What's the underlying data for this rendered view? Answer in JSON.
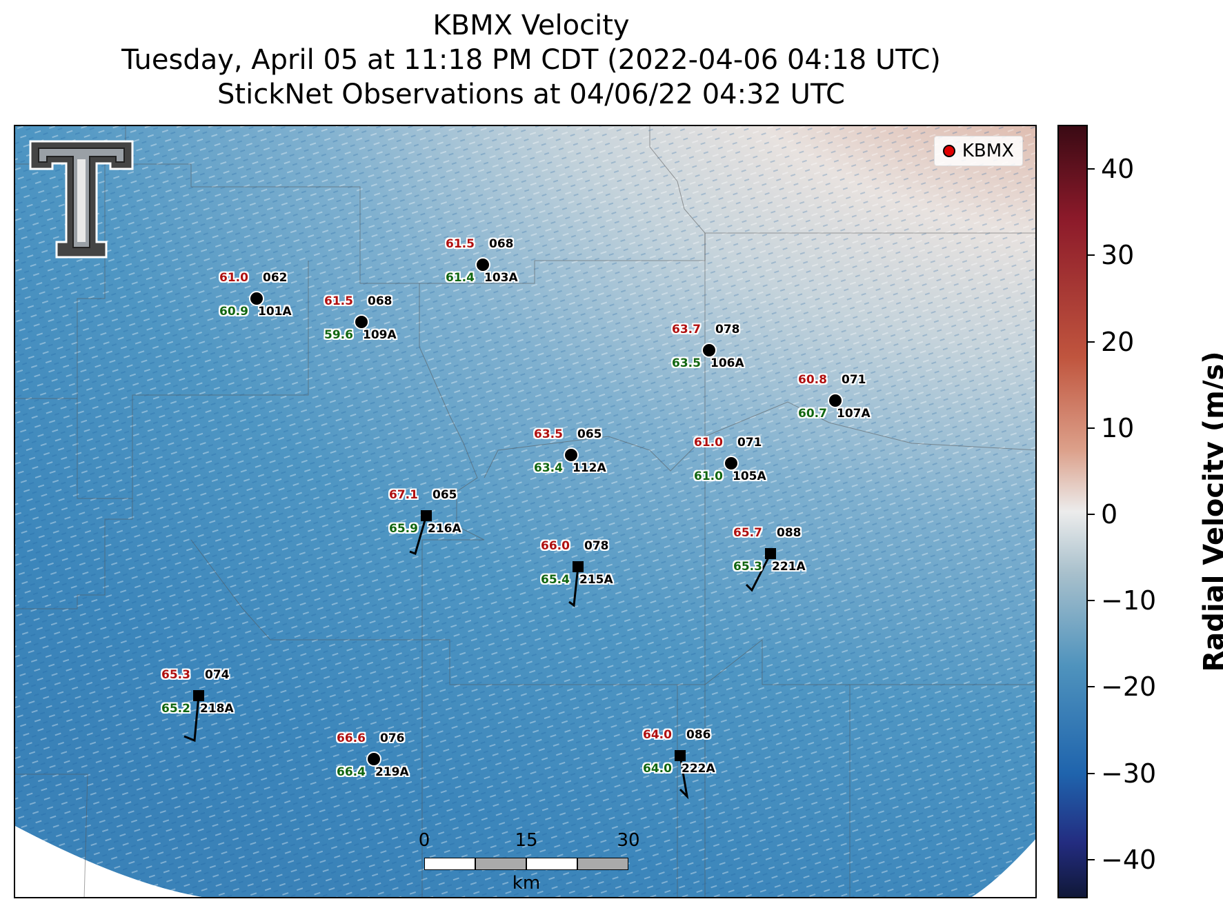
{
  "title": {
    "line1": "KBMX Velocity",
    "line2": "Tuesday, April 05 at 11:18 PM CDT (2022-04-06 04:18 UTC)",
    "line3": "StickNet Observations at 04/06/22 04:32 UTC"
  },
  "legend": {
    "label": "KBMX",
    "marker_color": "#e00000"
  },
  "colorbar": {
    "title": "Radial Velocity (m/s)",
    "ticks": [
      "40",
      "30",
      "20",
      "10",
      "0",
      "−10",
      "−20",
      "−30",
      "−40"
    ],
    "range": [
      -45,
      45
    ],
    "colors": {
      "max": "#3a0a14",
      "zero": "#ececec",
      "min": "#101838"
    }
  },
  "scale_bar": {
    "ticks": [
      "0",
      "15",
      "30"
    ],
    "unit": "km"
  },
  "logo": {
    "icon": "texas-tech-double-t-logo"
  },
  "stations": [
    {
      "id": "101A",
      "temp": "61.0",
      "dew": "60.9",
      "dir": "062",
      "marker": "circle"
    },
    {
      "id": "109A",
      "temp": "61.5",
      "dew": "59.6",
      "dir": "068",
      "marker": "circle"
    },
    {
      "id": "103A",
      "temp": "61.5",
      "dew": "61.4",
      "dir": "068",
      "marker": "circle"
    },
    {
      "id": "106A",
      "temp": "63.7",
      "dew": "63.5",
      "dir": "078",
      "marker": "circle"
    },
    {
      "id": "107A",
      "temp": "60.8",
      "dew": "60.7",
      "dir": "071",
      "marker": "circle"
    },
    {
      "id": "112A",
      "temp": "63.5",
      "dew": "63.4",
      "dir": "065",
      "marker": "circle"
    },
    {
      "id": "105A",
      "temp": "61.0",
      "dew": "61.0",
      "dir": "071",
      "marker": "circle"
    },
    {
      "id": "216A",
      "temp": "67.1",
      "dew": "65.9",
      "dir": "065",
      "marker": "square"
    },
    {
      "id": "215A",
      "temp": "66.0",
      "dew": "65.4",
      "dir": "078",
      "marker": "square"
    },
    {
      "id": "221A",
      "temp": "65.7",
      "dew": "65.3",
      "dir": "088",
      "marker": "square"
    },
    {
      "id": "218A",
      "temp": "65.3",
      "dew": "65.2",
      "dir": "074",
      "marker": "square"
    },
    {
      "id": "219A",
      "temp": "66.6",
      "dew": "66.4",
      "dir": "076",
      "marker": "circle"
    },
    {
      "id": "222A",
      "temp": "64.0",
      "dew": "64.0",
      "dir": "086",
      "marker": "square"
    }
  ]
}
